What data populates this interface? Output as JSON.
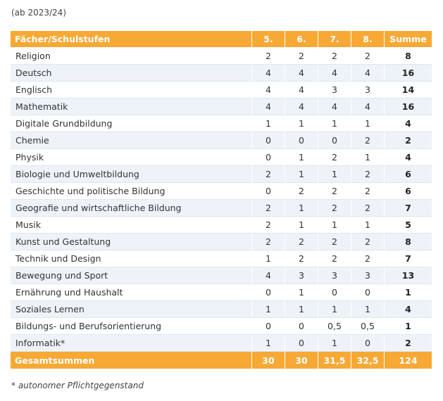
{
  "caption": "(ab 2023/24)",
  "table": {
    "headers": [
      "Fächer/Schulstufen",
      "5.",
      "6.",
      "7.",
      "8.",
      "Summe"
    ],
    "rows": [
      {
        "subject": "Religion",
        "g5": "2",
        "g6": "2",
        "g7": "2",
        "g8": "2",
        "sum": "8"
      },
      {
        "subject": "Deutsch",
        "g5": "4",
        "g6": "4",
        "g7": "4",
        "g8": "4",
        "sum": "16"
      },
      {
        "subject": "Englisch",
        "g5": "4",
        "g6": "4",
        "g7": "3",
        "g8": "3",
        "sum": "14"
      },
      {
        "subject": "Mathematik",
        "g5": "4",
        "g6": "4",
        "g7": "4",
        "g8": "4",
        "sum": "16"
      },
      {
        "subject": "Digitale Grundbildung",
        "g5": "1",
        "g6": "1",
        "g7": "1",
        "g8": "1",
        "sum": "4"
      },
      {
        "subject": "Chemie",
        "g5": "0",
        "g6": "0",
        "g7": "0",
        "g8": "2",
        "sum": "2"
      },
      {
        "subject": "Physik",
        "g5": "0",
        "g6": "1",
        "g7": "2",
        "g8": "1",
        "sum": "4"
      },
      {
        "subject": "Biologie und Umweltbildung",
        "g5": "2",
        "g6": "1",
        "g7": "1",
        "g8": "2",
        "sum": "6"
      },
      {
        "subject": "Geschichte und politische Bildung",
        "g5": "0",
        "g6": "2",
        "g7": "2",
        "g8": "2",
        "sum": "6"
      },
      {
        "subject": "Geografie und wirtschaftliche Bildung",
        "g5": "2",
        "g6": "1",
        "g7": "2",
        "g8": "2",
        "sum": "7"
      },
      {
        "subject": "Musik",
        "g5": "2",
        "g6": "1",
        "g7": "1",
        "g8": "1",
        "sum": "5"
      },
      {
        "subject": "Kunst und Gestaltung",
        "g5": "2",
        "g6": "2",
        "g7": "2",
        "g8": "2",
        "sum": "8"
      },
      {
        "subject": "Technik und Design",
        "g5": "1",
        "g6": "2",
        "g7": "2",
        "g8": "2",
        "sum": "7"
      },
      {
        "subject": "Bewegung und Sport",
        "g5": "4",
        "g6": "3",
        "g7": "3",
        "g8": "3",
        "sum": "13"
      },
      {
        "subject": "Ernährung und Haushalt",
        "g5": "0",
        "g6": "1",
        "g7": "0",
        "g8": "0",
        "sum": "1"
      },
      {
        "subject": "Soziales Lernen",
        "g5": "1",
        "g6": "1",
        "g7": "1",
        "g8": "1",
        "sum": "4"
      },
      {
        "subject": "Bildungs- und Berufsorientierung",
        "g5": "0",
        "g6": "0",
        "g7": "0,5",
        "g8": "0,5",
        "sum": "1"
      },
      {
        "subject": "Informatik*",
        "g5": "1",
        "g6": "0",
        "g7": "1",
        "g8": "0",
        "sum": "2"
      }
    ],
    "totals": {
      "label": "Gesamtsummen",
      "g5": "30",
      "g6": "30",
      "g7": "31,5",
      "g8": "32,5",
      "sum": "124"
    }
  },
  "footnote": "* autonomer Pflichtgegenstand",
  "colors": {
    "header_bg": "#f7a935",
    "stripe_bg": "#eef3f9",
    "header_text": "#ffffff"
  }
}
